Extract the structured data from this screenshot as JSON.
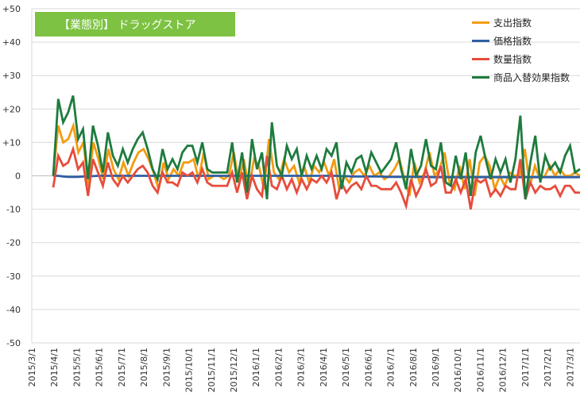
{
  "chart_data": {
    "type": "line",
    "title": "【業態別】 ドラッグストア",
    "ylim": [
      -50,
      50
    ],
    "ytick_labels": [
      "+50",
      "+40",
      "+30",
      "+20",
      "+10",
      "0",
      "-10",
      "-20",
      "-30",
      "-40",
      "-50"
    ],
    "xtick_labels": [
      "2015/3/1",
      "2015/4/1",
      "2015/5/1",
      "2015/6/1",
      "2015/7/1",
      "2015/8/1",
      "2015/9/1",
      "2015/10/1",
      "2015/11/1",
      "2015/12/1",
      "2016/1/1",
      "2016/2/1",
      "2016/3/1",
      "2016/4/1",
      "2016/5/1",
      "2016/6/1",
      "2016/7/1",
      "2016/8/1",
      "2016/9/1",
      "2016/10/1",
      "2016/11/1",
      "2016/12/1",
      "2017/1/1",
      "2017/2/1",
      "2017/3/1"
    ],
    "grid": true,
    "legend_position": "top-right",
    "series": [
      {
        "name": "支出指数",
        "color": "#f39c12",
        "values": [
          0,
          15,
          10,
          11,
          15,
          7,
          10,
          -3,
          10,
          5,
          -1,
          8,
          2,
          -1,
          4,
          0,
          4,
          7,
          8,
          5,
          1,
          -4,
          4,
          -1,
          2,
          0,
          4,
          4,
          5,
          -1,
          7,
          -1,
          0,
          0,
          -1,
          0,
          7,
          -2,
          5,
          -4,
          5,
          3,
          -4,
          11,
          1,
          -1,
          5,
          1,
          3,
          -2,
          3,
          -2,
          3,
          1,
          4,
          0,
          5,
          -4,
          0,
          -2,
          1,
          2,
          0,
          3,
          0,
          1,
          -1,
          0,
          2,
          5,
          -1,
          -6,
          4,
          -2,
          1,
          7,
          0,
          2,
          7,
          -2,
          -4,
          3,
          -4,
          5,
          -6,
          4,
          6,
          3,
          -4,
          0,
          -3,
          1,
          0,
          0,
          8,
          -3,
          3,
          -1,
          0,
          3,
          0,
          2,
          0,
          0,
          1,
          0
        ]
      },
      {
        "name": "価格指数",
        "color": "#2e5fa3",
        "values": [
          0,
          0,
          -0.2,
          -0.3,
          -0.3,
          -0.3,
          -0.2,
          -0.2,
          -0.1,
          0,
          0,
          0,
          0,
          0,
          0,
          0,
          0,
          0,
          0,
          0,
          0,
          0,
          0,
          0,
          0,
          0,
          0,
          0,
          0,
          0,
          0,
          0,
          0,
          0,
          0,
          0,
          0,
          0,
          0,
          0,
          0,
          0,
          0,
          0,
          0,
          0,
          0,
          0,
          0,
          0,
          0,
          0,
          0,
          0,
          0,
          0,
          0,
          0,
          -0.1,
          -0.1,
          -0.2,
          -0.2,
          -0.2,
          -0.2,
          -0.2,
          -0.2,
          -0.2,
          -0.3,
          -0.3,
          -0.3,
          -0.3,
          -0.3,
          -0.3,
          -0.3,
          -0.3,
          -0.3,
          -0.4,
          -0.4,
          -0.4,
          -0.4,
          -0.4,
          -0.4,
          -0.4,
          -0.4,
          -0.4,
          -0.4,
          -0.4,
          -0.4,
          -0.4,
          -0.4,
          -0.4,
          -0.4,
          -0.4,
          -0.4,
          -0.4,
          -0.4,
          -0.4,
          -0.4,
          -0.4,
          -0.4,
          -0.4,
          -0.4,
          -0.4,
          -0.4,
          -0.4,
          -0.4,
          -0.4
        ]
      },
      {
        "name": "数量指数",
        "color": "#e74c3c",
        "values": [
          -3.5,
          6,
          3,
          4,
          8,
          2,
          4,
          -6,
          5,
          1,
          -3,
          4,
          -1,
          -3,
          0,
          -2,
          0,
          2,
          3,
          1,
          -3,
          -5,
          1,
          -2,
          -2,
          -3,
          1,
          0,
          1,
          -2,
          2,
          -2,
          -3,
          -3,
          -3,
          -3,
          1,
          -5,
          1,
          -7,
          0,
          -4,
          -6,
          6,
          -3,
          -4,
          0,
          -4,
          -1,
          -5,
          -1,
          -4,
          -1,
          -2,
          0,
          -2,
          1,
          -7,
          -2,
          -5,
          -3,
          -2,
          -4,
          0,
          -3,
          -3,
          -4,
          -4,
          -4,
          -2,
          -5,
          -9,
          -1,
          -6,
          -3,
          2,
          -3,
          -2,
          3,
          -5,
          -5,
          -1,
          -5,
          -1,
          -10,
          -1,
          -2,
          -1,
          -6,
          -4,
          -6,
          -3,
          -4,
          -4,
          5,
          -7,
          -2,
          -5,
          -3,
          -4,
          -4,
          -3,
          -6,
          -3,
          -3,
          -5,
          -5
        ]
      },
      {
        "name": "商品入替効果指数",
        "color": "#1e7b3e",
        "values": [
          0,
          23,
          16,
          19,
          24,
          11,
          14,
          -1,
          15,
          9,
          1,
          13,
          6,
          3,
          8,
          4,
          8,
          11,
          13,
          8,
          2,
          -1,
          8,
          2,
          5,
          2,
          7,
          9,
          9,
          4,
          10,
          2,
          1,
          1,
          1,
          1,
          10,
          -2,
          7,
          -5,
          11,
          2,
          7,
          -7,
          16,
          3,
          0,
          9,
          5,
          8,
          0,
          6,
          2,
          6,
          2,
          8,
          6,
          10,
          -4,
          4,
          1,
          5,
          6,
          1,
          7,
          4,
          1,
          3,
          5,
          10,
          2,
          -4,
          8,
          0,
          3,
          11,
          3,
          2,
          10,
          -2,
          -3,
          6,
          -1,
          7,
          -6,
          7,
          12,
          5,
          -1,
          5,
          1,
          5,
          -2,
          5,
          18,
          -7,
          4,
          12,
          -2,
          6,
          2,
          4,
          1,
          6,
          9,
          1,
          2
        ]
      }
    ]
  }
}
